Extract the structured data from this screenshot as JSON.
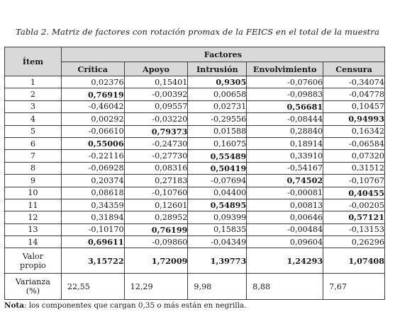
{
  "caption": "Tabla 2. Matriz de factores con rotación promax de la FEICS en el total de la muestra",
  "header": {
    "item": "Ítem",
    "group": "Factores",
    "columns": [
      "Crítica",
      "Apoyo",
      "Intrusión",
      "Envolvimiento",
      "Censura"
    ]
  },
  "rows": [
    {
      "item": "1",
      "values": [
        "0,02376",
        "0,15401",
        "0,9305",
        "-0,07606",
        "-0,34074"
      ],
      "bold": [
        false,
        false,
        true,
        false,
        false
      ]
    },
    {
      "item": "2",
      "values": [
        "0,76919",
        "-0,00392",
        "0,00658",
        "-0,09883",
        "-0,04778"
      ],
      "bold": [
        true,
        false,
        false,
        false,
        false
      ]
    },
    {
      "item": "3",
      "values": [
        "-0,46042",
        "0,09557",
        "0,02731",
        "0,56681",
        "0,10457"
      ],
      "bold": [
        false,
        false,
        false,
        true,
        false
      ]
    },
    {
      "item": "4",
      "values": [
        "0,00292",
        "-0,03220",
        "-0,29556",
        "-0,08444",
        "0,94993"
      ],
      "bold": [
        false,
        false,
        false,
        false,
        true
      ]
    },
    {
      "item": "5",
      "values": [
        "-0,06610",
        "0,79373",
        "0,01588",
        "0,28840",
        "0,16342"
      ],
      "bold": [
        false,
        true,
        false,
        false,
        false
      ]
    },
    {
      "item": "6",
      "values": [
        "0,55006",
        "-0,24730",
        "0,16075",
        "0,18914",
        "-0,06584"
      ],
      "bold": [
        true,
        false,
        false,
        false,
        false
      ]
    },
    {
      "item": "7",
      "values": [
        "-0,22116",
        "-0,27730",
        "0,55489",
        "0,33910",
        "0,07320"
      ],
      "bold": [
        false,
        false,
        true,
        false,
        false
      ]
    },
    {
      "item": "8",
      "values": [
        "-0,06928",
        "0,08316",
        "0,50419",
        "-0,54167",
        "0,31512"
      ],
      "bold": [
        false,
        false,
        true,
        false,
        false
      ]
    },
    {
      "item": "9",
      "values": [
        "0,20374",
        "0,27183",
        "-0,07694",
        "0,74502",
        "-0,10767"
      ],
      "bold": [
        false,
        false,
        false,
        true,
        false
      ]
    },
    {
      "item": "10",
      "values": [
        "0,08618",
        "-0,10760",
        "0,04400",
        "-0,00081",
        "0,40455"
      ],
      "bold": [
        false,
        false,
        false,
        false,
        true
      ]
    },
    {
      "item": "11",
      "values": [
        "0,34359",
        "0,12601",
        "0,54895",
        "0,00813",
        "-0,00205"
      ],
      "bold": [
        false,
        false,
        true,
        false,
        false
      ]
    },
    {
      "item": "12",
      "values": [
        "0,31894",
        "0,28952",
        "0,09399",
        "0,00646",
        "0,57121"
      ],
      "bold": [
        false,
        false,
        false,
        false,
        true
      ]
    },
    {
      "item": "13",
      "values": [
        "-0,10170",
        "0,76199",
        "0,15835",
        "-0,00484",
        "-0,13153"
      ],
      "bold": [
        false,
        true,
        false,
        false,
        false
      ]
    },
    {
      "item": "14",
      "values": [
        "0,69611",
        "-0,09860",
        "-0,04349",
        "0,09604",
        "0,26296"
      ],
      "bold": [
        true,
        false,
        false,
        false,
        false
      ]
    }
  ],
  "valor_propio": {
    "label_line1": "Valor",
    "label_line2": "propio",
    "values": [
      "3,15722",
      "1,72009",
      "1,39773",
      "1,24293",
      "1,07408"
    ]
  },
  "varianza": {
    "label_line1": "Varianza",
    "label_line2": "(%)",
    "values": [
      "22,55",
      "12,29",
      "9,98",
      "8,88",
      "7,67"
    ]
  },
  "note": {
    "prefix": "Nota",
    "text": ": los componentes que cargan 0,35 o más están en negrilla."
  }
}
